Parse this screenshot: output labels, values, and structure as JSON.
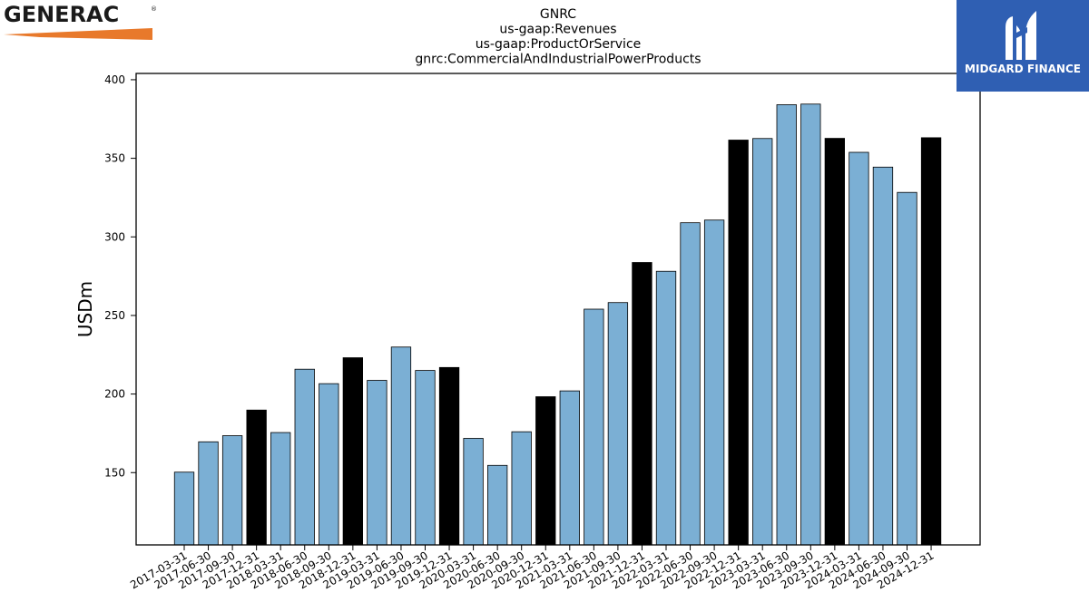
{
  "logos": {
    "left_text": "GENERAC",
    "left_mark": "®",
    "right_text": "MIDGARD FINANCE"
  },
  "colors": {
    "bar_normal": "#7bafd4",
    "bar_q4": "#000000",
    "logo_right_bg": "#2f5fb3",
    "logo_left_accent": "#e8792b"
  },
  "chart_data": {
    "type": "bar",
    "title": [
      "GNRC",
      "us-gaap:Revenues",
      "us-gaap:ProductOrService",
      "gnrc:CommercialAndIndustrialPowerProducts"
    ],
    "xlabel": "",
    "ylabel": "USDm",
    "ylim": [
      104,
      404
    ],
    "yticks": [
      150,
      200,
      250,
      300,
      350,
      400
    ],
    "grid": false,
    "categories": [
      "2017-03-31",
      "2017-06-30",
      "2017-09-30",
      "2017-12-31",
      "2018-03-31",
      "2018-06-30",
      "2018-09-30",
      "2018-12-31",
      "2019-03-31",
      "2019-06-30",
      "2019-09-30",
      "2019-12-31",
      "2020-03-31",
      "2020-06-30",
      "2020-09-30",
      "2020-12-31",
      "2021-03-31",
      "2021-06-30",
      "2021-09-30",
      "2021-12-31",
      "2022-03-31",
      "2022-06-30",
      "2022-09-30",
      "2022-12-31",
      "2023-03-31",
      "2023-06-30",
      "2023-09-30",
      "2023-12-31",
      "2024-03-31",
      "2024-06-30",
      "2024-09-30",
      "2024-12-31"
    ],
    "values": [
      150.3,
      169.6,
      173.5,
      189.8,
      175.5,
      215.8,
      206.6,
      223.1,
      208.7,
      229.9,
      215.0,
      216.9,
      171.8,
      154.6,
      176.0,
      198.3,
      202.0,
      254.0,
      258.2,
      283.7,
      278.1,
      309.0,
      310.7,
      361.6,
      362.6,
      384.1,
      384.5,
      362.7,
      353.8,
      344.4,
      328.3,
      363.1
    ]
  }
}
